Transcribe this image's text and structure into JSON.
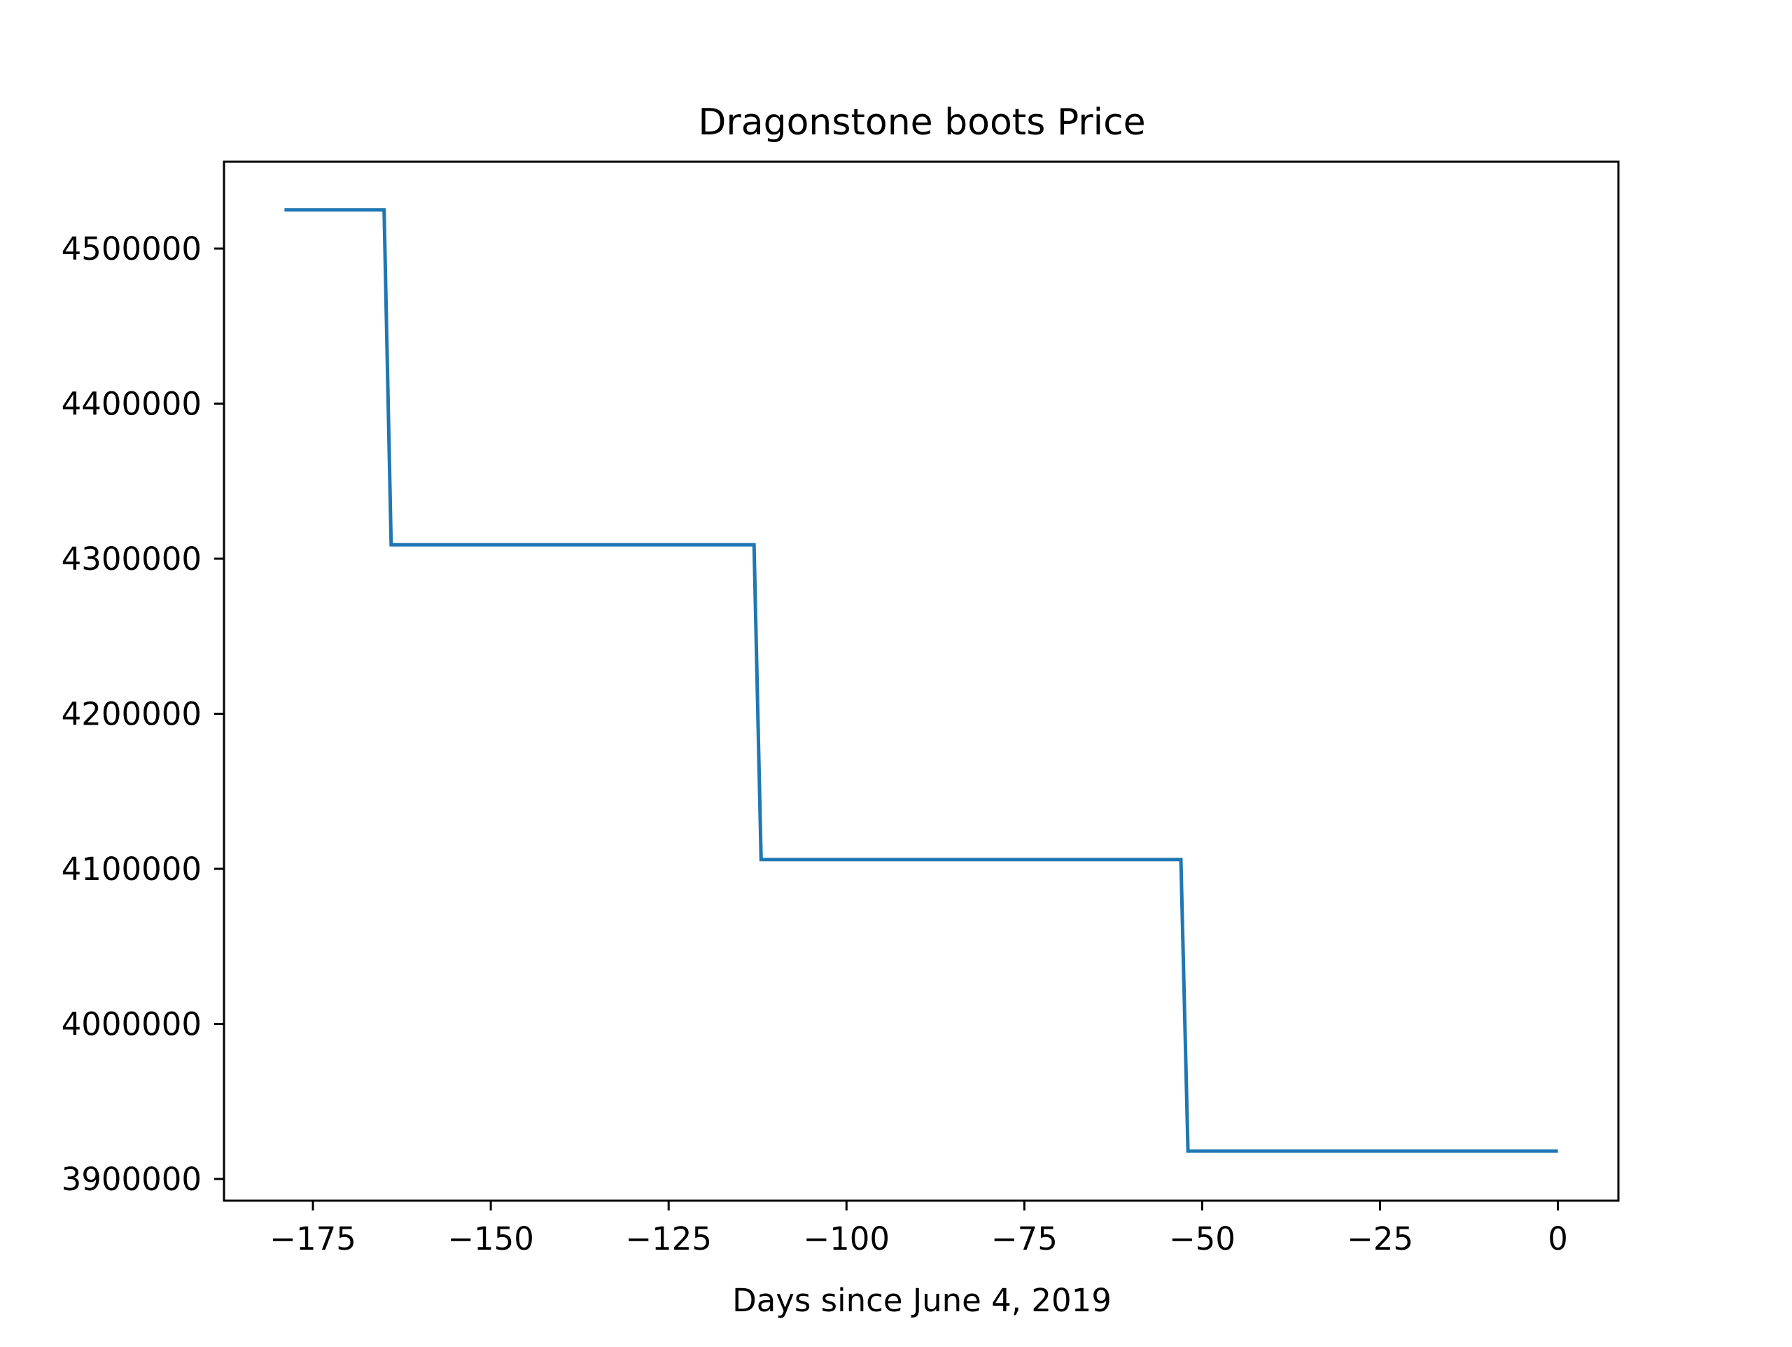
{
  "chart_data": {
    "type": "line",
    "title": "Dragonstone boots Price",
    "xlabel": "Days since June 4, 2019",
    "ylabel": "",
    "xlim": [
      -187.5,
      8.5
    ],
    "ylim": [
      3886000,
      4556000
    ],
    "x_ticks": [
      -175,
      -150,
      -125,
      -100,
      -75,
      -50,
      -25,
      0
    ],
    "x_tick_labels": [
      "−175",
      "−150",
      "−125",
      "−100",
      "−75",
      "−50",
      "−25",
      "0"
    ],
    "y_ticks": [
      3900000,
      4000000,
      4100000,
      4200000,
      4300000,
      4400000,
      4500000
    ],
    "y_tick_labels": [
      "3900000",
      "4000000",
      "4100000",
      "4200000",
      "4300000",
      "4400000",
      "4500000"
    ],
    "grid": false,
    "series": [
      {
        "color": "#1f77b4",
        "x": [
          -179,
          -165,
          -164,
          -113,
          -112,
          -53,
          -52,
          0
        ],
        "y": [
          4525000,
          4525000,
          4309000,
          4309000,
          4106000,
          4106000,
          3918000,
          3918000
        ]
      }
    ]
  }
}
